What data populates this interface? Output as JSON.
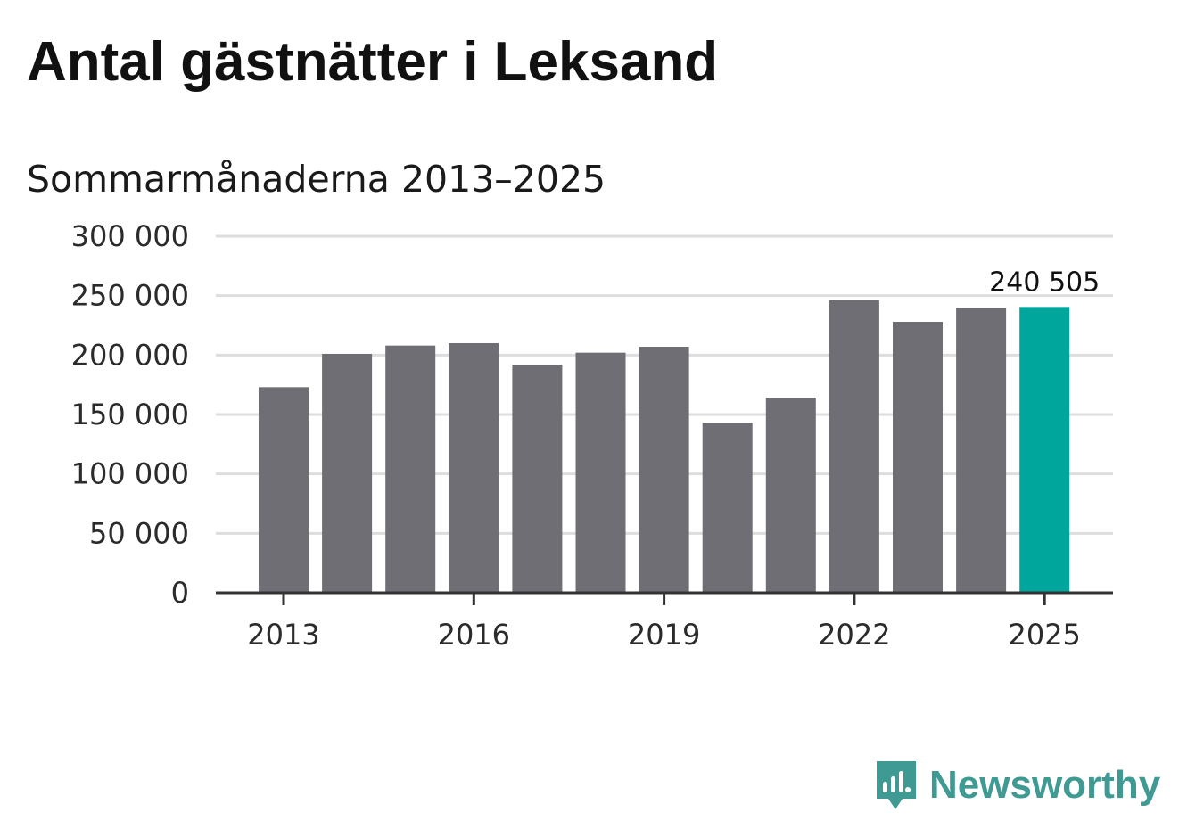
{
  "chart_data": {
    "type": "bar",
    "title": "Antal gästnätter i Leksand",
    "subtitle": "Sommarmånaderna 2013–2025",
    "categories": [
      "2013",
      "2014",
      "2015",
      "2016",
      "2017",
      "2018",
      "2019",
      "2020",
      "2021",
      "2022",
      "2023",
      "2024",
      "2025"
    ],
    "values": [
      173000,
      201000,
      208000,
      210000,
      192000,
      202000,
      207000,
      143000,
      164000,
      246000,
      228000,
      240000,
      240505
    ],
    "ylim": [
      0,
      300000
    ],
    "yticks": [
      0,
      50000,
      100000,
      150000,
      200000,
      250000,
      300000
    ],
    "ytick_labels": [
      "0",
      "50 000",
      "100 000",
      "150 000",
      "200 000",
      "250 000",
      "300 000"
    ],
    "xtick_labels": [
      "2013",
      "2016",
      "2019",
      "2022",
      "2025"
    ],
    "grid": true,
    "highlight_index": 12,
    "highlight_label": "240 505",
    "colors": {
      "bar": "#6f6e74",
      "highlight": "#00a69c",
      "grid": "#dddddd",
      "axis": "#333333"
    }
  },
  "brand": {
    "name": "Newsworthy",
    "color": "#3f9a93"
  }
}
